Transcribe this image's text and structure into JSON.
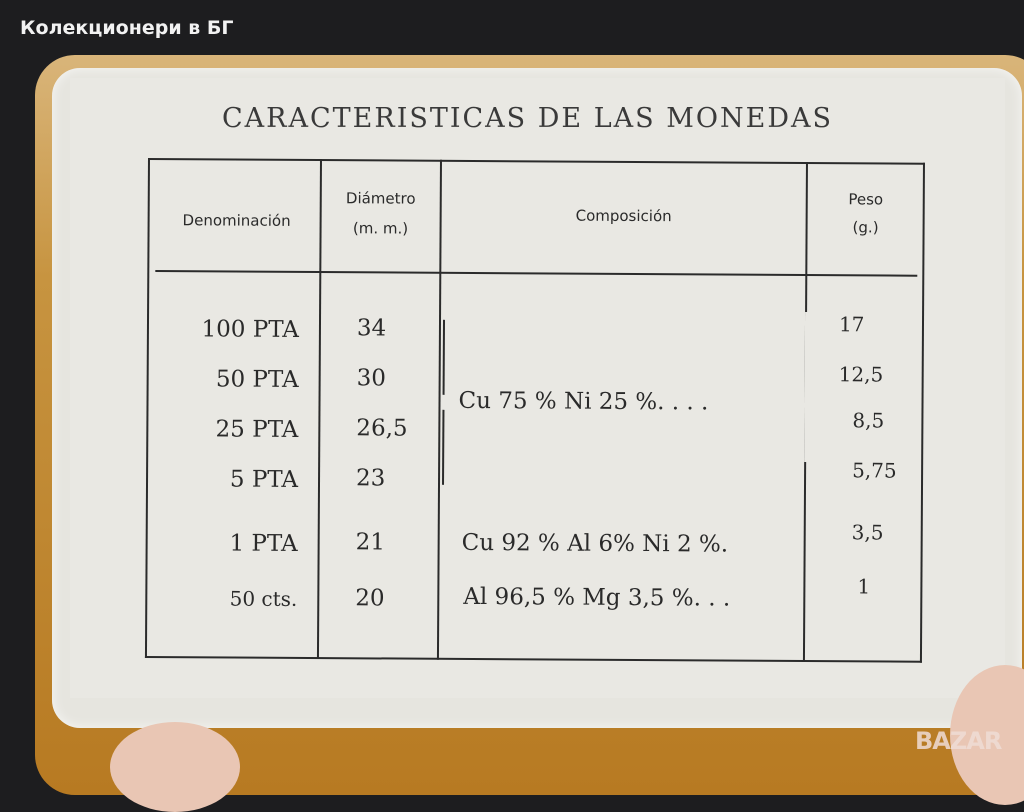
{
  "watermark": "Колекционери в БГ",
  "logo_watermark": "BAZAR",
  "card": {
    "title": "CARACTERISTICAS DE LAS MONEDAS",
    "headers": {
      "denominacion": "Denominación",
      "diametro": "Diámetro",
      "diametro_unit": "(m. m.)",
      "composicion": "Composición",
      "peso": "Peso",
      "peso_unit": "(g.)"
    },
    "rows": [
      {
        "denominacion": "100 PTA",
        "diametro": "34",
        "peso": "17"
      },
      {
        "denominacion": "50 PTA",
        "diametro": "30",
        "peso": "12,5"
      },
      {
        "denominacion": "25 PTA",
        "diametro": "26,5",
        "peso": "8,5"
      },
      {
        "denominacion": "5 PTA",
        "diametro": "23",
        "peso": "5,75"
      },
      {
        "denominacion": "1 PTA",
        "diametro": "21",
        "peso": "3,5"
      },
      {
        "denominacion": "50 cts.",
        "diametro": "20",
        "peso": "1"
      }
    ],
    "compositions": [
      "Cu 75 %  Ni 25 %. . . .",
      "Cu 92 %  Al 6%  Ni 2 %.",
      "Al 96,5 %  Mg 3,5 %. . ."
    ]
  }
}
